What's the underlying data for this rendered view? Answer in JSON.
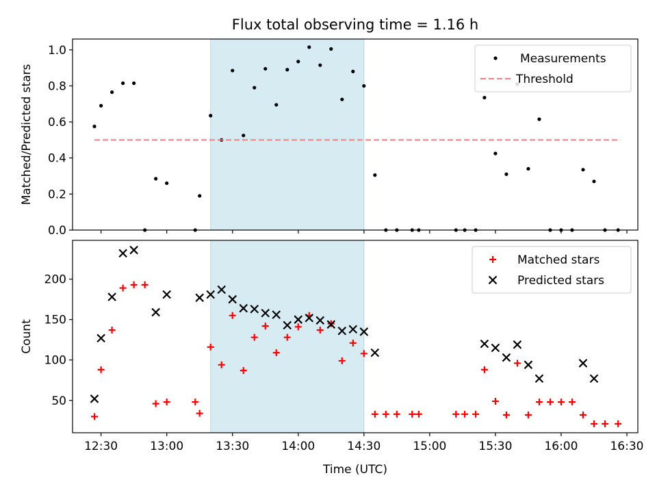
{
  "title": "Flux total observing time = 1.16 h",
  "chart_data": [
    {
      "type": "scatter",
      "ylabel": "Matched/Predicted stars",
      "xlim": [
        "12:17",
        "16:35"
      ],
      "ylim": [
        0,
        1.06
      ],
      "x_ticks": [
        "12:30",
        "13:00",
        "13:30",
        "14:00",
        "14:30",
        "15:00",
        "15:30",
        "16:00",
        "16:30"
      ],
      "show_x_tick_labels": false,
      "y_ticks": [
        "0.0",
        "0.2",
        "0.4",
        "0.6",
        "0.8",
        "1.0"
      ],
      "legend_location": "upper right",
      "highlight_span": [
        "13:20",
        "14:30"
      ],
      "highlight_color": "#add8e6",
      "series": [
        {
          "name": "Measurements",
          "marker": "dot",
          "color": "#000000",
          "points": [
            [
              "12:27",
              0.575
            ],
            [
              "12:30",
              0.69
            ],
            [
              "12:35",
              0.765
            ],
            [
              "12:40",
              0.815
            ],
            [
              "12:45",
              0.815
            ],
            [
              "12:50",
              0.0
            ],
            [
              "12:55",
              0.285
            ],
            [
              "13:00",
              0.26
            ],
            [
              "13:13",
              0.0
            ],
            [
              "13:15",
              0.19
            ],
            [
              "13:20",
              0.635
            ],
            [
              "13:25",
              0.5
            ],
            [
              "13:30",
              0.885
            ],
            [
              "13:35",
              0.525
            ],
            [
              "13:40",
              0.79
            ],
            [
              "13:45",
              0.895
            ],
            [
              "13:50",
              0.695
            ],
            [
              "13:55",
              0.89
            ],
            [
              "14:00",
              0.935
            ],
            [
              "14:05",
              1.015
            ],
            [
              "14:10",
              0.915
            ],
            [
              "14:15",
              1.005
            ],
            [
              "14:20",
              0.725
            ],
            [
              "14:25",
              0.88
            ],
            [
              "14:30",
              0.8
            ],
            [
              "14:35",
              0.305
            ],
            [
              "14:40",
              0.0
            ],
            [
              "14:45",
              0.0
            ],
            [
              "14:52",
              0.0
            ],
            [
              "14:55",
              0.0
            ],
            [
              "15:12",
              0.0
            ],
            [
              "15:16",
              0.0
            ],
            [
              "15:21",
              0.0
            ],
            [
              "15:25",
              0.735
            ],
            [
              "15:30",
              0.425
            ],
            [
              "15:35",
              0.31
            ],
            [
              "15:40",
              0.81
            ],
            [
              "15:45",
              0.34
            ],
            [
              "15:50",
              0.615
            ],
            [
              "15:55",
              0.0
            ],
            [
              "16:00",
              0.0
            ],
            [
              "16:05",
              0.0
            ],
            [
              "16:10",
              0.335
            ],
            [
              "16:15",
              0.27
            ],
            [
              "16:20",
              0.0
            ],
            [
              "16:26",
              0.0
            ]
          ]
        },
        {
          "name": "Threshold",
          "marker": "dashed-line",
          "color": "#f08080",
          "points": [
            [
              "12:27",
              0.5
            ],
            [
              "16:27",
              0.5
            ]
          ]
        }
      ]
    },
    {
      "type": "scatter",
      "xlabel": "Time (UTC)",
      "ylabel": "Count",
      "xlim": [
        "12:17",
        "16:35"
      ],
      "ylim": [
        10,
        248
      ],
      "x_ticks": [
        "12:30",
        "13:00",
        "13:30",
        "14:00",
        "14:30",
        "15:00",
        "15:30",
        "16:00",
        "16:30"
      ],
      "y_ticks": [
        "50",
        "100",
        "150",
        "200"
      ],
      "legend_location": "upper right",
      "highlight_span": [
        "13:20",
        "14:30"
      ],
      "highlight_color": "#add8e6",
      "series": [
        {
          "name": "Matched stars",
          "marker": "plus",
          "color": "#ff0000",
          "points": [
            [
              "12:27",
              30
            ],
            [
              "12:30",
              88
            ],
            [
              "12:35",
              137
            ],
            [
              "12:40",
              189
            ],
            [
              "12:45",
              193
            ],
            [
              "12:50",
              193
            ],
            [
              "12:55",
              46
            ],
            [
              "13:00",
              48
            ],
            [
              "13:13",
              48
            ],
            [
              "13:15",
              34
            ],
            [
              "13:20",
              116
            ],
            [
              "13:25",
              94
            ],
            [
              "13:30",
              155
            ],
            [
              "13:35",
              87
            ],
            [
              "13:40",
              128
            ],
            [
              "13:45",
              142
            ],
            [
              "13:50",
              109
            ],
            [
              "13:55",
              128
            ],
            [
              "14:00",
              141
            ],
            [
              "14:05",
              155
            ],
            [
              "14:10",
              137
            ],
            [
              "14:15",
              145
            ],
            [
              "14:20",
              99
            ],
            [
              "14:25",
              121
            ],
            [
              "14:30",
              108
            ],
            [
              "14:35",
              33
            ],
            [
              "14:40",
              33
            ],
            [
              "14:45",
              33
            ],
            [
              "14:52",
              33
            ],
            [
              "14:55",
              33
            ],
            [
              "15:12",
              33
            ],
            [
              "15:16",
              33
            ],
            [
              "15:21",
              33
            ],
            [
              "15:25",
              88
            ],
            [
              "15:30",
              49
            ],
            [
              "15:35",
              32
            ],
            [
              "15:40",
              96
            ],
            [
              "15:45",
              32
            ],
            [
              "15:50",
              48
            ],
            [
              "15:55",
              48
            ],
            [
              "16:00",
              48
            ],
            [
              "16:05",
              48
            ],
            [
              "16:10",
              32
            ],
            [
              "16:15",
              21
            ],
            [
              "16:20",
              21
            ],
            [
              "16:26",
              21
            ]
          ]
        },
        {
          "name": "Predicted stars",
          "marker": "x",
          "color": "#000000",
          "points": [
            [
              "12:27",
              52
            ],
            [
              "12:30",
              127
            ],
            [
              "12:35",
              178
            ],
            [
              "12:40",
              232
            ],
            [
              "12:45",
              236
            ],
            [
              "12:55",
              159
            ],
            [
              "13:00",
              181
            ],
            [
              "13:15",
              177
            ],
            [
              "13:20",
              181
            ],
            [
              "13:25",
              187
            ],
            [
              "13:30",
              175
            ],
            [
              "13:35",
              164
            ],
            [
              "13:40",
              163
            ],
            [
              "13:45",
              158
            ],
            [
              "13:50",
              156
            ],
            [
              "13:55",
              143
            ],
            [
              "14:00",
              150
            ],
            [
              "14:05",
              152
            ],
            [
              "14:10",
              149
            ],
            [
              "14:15",
              144
            ],
            [
              "14:20",
              136
            ],
            [
              "14:25",
              138
            ],
            [
              "14:30",
              135
            ],
            [
              "14:35",
              109
            ],
            [
              "15:25",
              120
            ],
            [
              "15:30",
              115
            ],
            [
              "15:35",
              103
            ],
            [
              "15:40",
              119
            ],
            [
              "15:45",
              94
            ],
            [
              "15:50",
              77
            ],
            [
              "16:10",
              96
            ],
            [
              "16:15",
              77
            ]
          ]
        }
      ]
    }
  ]
}
